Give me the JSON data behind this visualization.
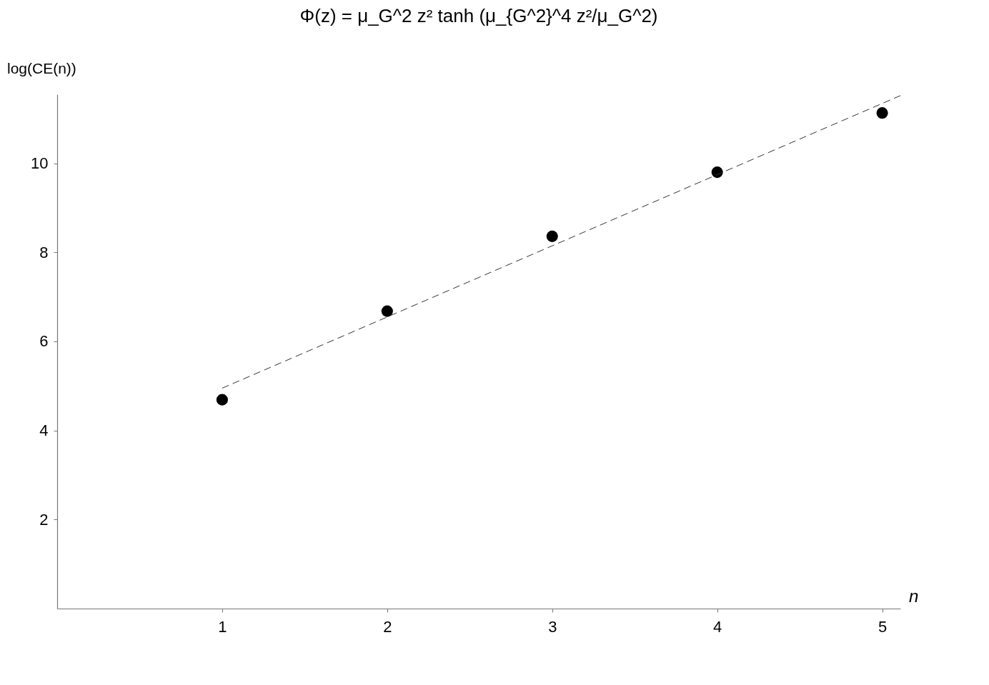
{
  "chart_data": {
    "type": "scatter",
    "title": "Φ(z) = μ_G^2 z² tanh (μ_{G^2}^4 z²/μ_G^2)",
    "xlabel": "n",
    "ylabel": "log(CE(n))",
    "x": [
      1,
      2,
      3,
      4,
      5
    ],
    "series": [
      {
        "color": "#000000",
        "marker": "circle",
        "values": [
          4.69,
          6.68,
          8.36,
          9.8,
          11.13
        ]
      },
      {
        "type": "line",
        "color": "#333333",
        "line_style": "dashed",
        "x": [
          1,
          5.11
        ],
        "values": [
          4.95,
          11.52
        ]
      }
    ],
    "xlim": [
      0,
      5.11
    ],
    "ylim": [
      0,
      11.55
    ],
    "xticks": [
      1,
      2,
      3,
      4,
      5
    ],
    "yticks": [
      2,
      4,
      6,
      8,
      10
    ],
    "grid": false
  }
}
